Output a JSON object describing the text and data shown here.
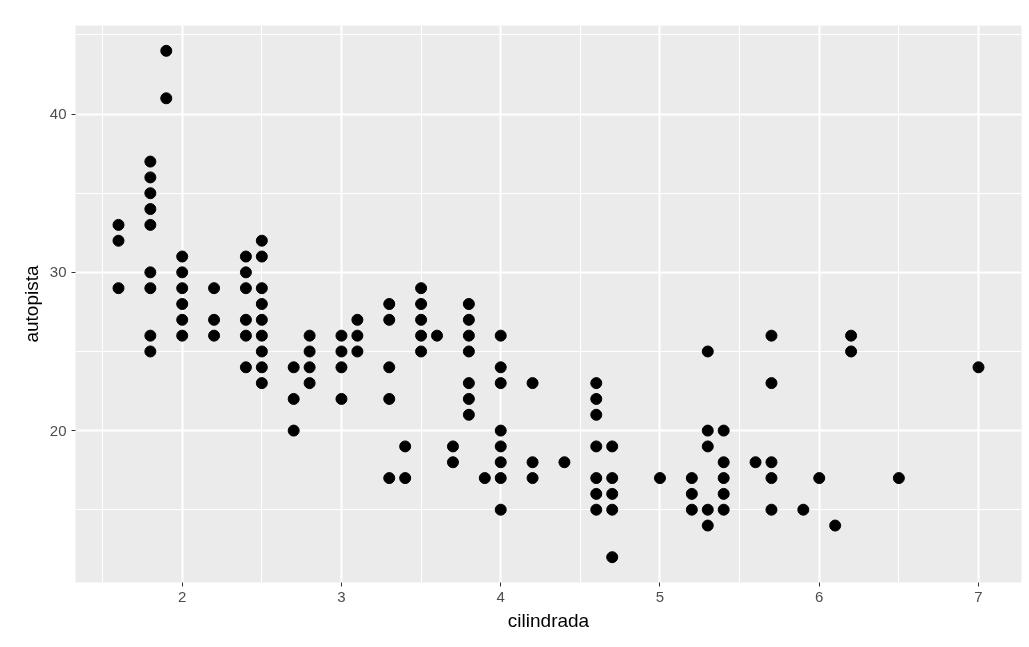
{
  "chart_data": {
    "type": "scatter",
    "xlabel": "cilindrada",
    "ylabel": "autopista",
    "xlim": [
      1.33,
      7.27
    ],
    "ylim": [
      10.4,
      45.6
    ],
    "xticks": [
      2,
      3,
      4,
      5,
      6,
      7
    ],
    "yticks": [
      20,
      30,
      40
    ],
    "grid": true,
    "marker": "circle",
    "series": [
      {
        "color": "#000000",
        "x": [
          1.6,
          1.6,
          1.6,
          1.8,
          1.8,
          1.8,
          1.8,
          1.8,
          1.8,
          1.8,
          1.8,
          1.8,
          1.9,
          1.9,
          2.0,
          2.0,
          2.0,
          2.0,
          2.0,
          2.0,
          2.2,
          2.2,
          2.2,
          2.4,
          2.4,
          2.4,
          2.4,
          2.4,
          2.4,
          2.5,
          2.5,
          2.5,
          2.5,
          2.5,
          2.5,
          2.5,
          2.5,
          2.5,
          2.7,
          2.7,
          2.7,
          2.8,
          2.8,
          2.8,
          2.8,
          3.0,
          3.0,
          3.0,
          3.0,
          3.1,
          3.1,
          3.1,
          3.3,
          3.3,
          3.3,
          3.3,
          3.3,
          3.4,
          3.4,
          3.5,
          3.5,
          3.5,
          3.5,
          3.5,
          3.6,
          3.7,
          3.7,
          3.8,
          3.8,
          3.8,
          3.8,
          3.8,
          3.8,
          3.8,
          3.9,
          4.0,
          4.0,
          4.0,
          4.0,
          4.0,
          4.0,
          4.0,
          4.0,
          4.2,
          4.2,
          4.2,
          4.4,
          4.6,
          4.6,
          4.6,
          4.6,
          4.6,
          4.6,
          4.6,
          4.7,
          4.7,
          4.7,
          4.7,
          4.7,
          5.0,
          5.2,
          5.2,
          5.2,
          5.3,
          5.3,
          5.3,
          5.3,
          5.3,
          5.4,
          5.4,
          5.4,
          5.4,
          5.4,
          5.6,
          5.7,
          5.7,
          5.7,
          5.7,
          5.7,
          5.9,
          6.0,
          6.1,
          6.2,
          6.2,
          6.5,
          7.0
        ],
        "values": [
          33,
          32,
          29,
          37,
          36,
          35,
          34,
          33,
          30,
          29,
          26,
          25,
          44,
          41,
          31,
          30,
          29,
          28,
          27,
          26,
          29,
          27,
          26,
          31,
          30,
          29,
          27,
          26,
          24,
          32,
          31,
          29,
          28,
          27,
          26,
          25,
          24,
          23,
          24,
          22,
          20,
          26,
          25,
          24,
          23,
          26,
          25,
          24,
          22,
          27,
          26,
          25,
          28,
          27,
          24,
          22,
          17,
          19,
          17,
          29,
          28,
          27,
          26,
          25,
          26,
          19,
          18,
          28,
          27,
          26,
          25,
          23,
          22,
          21,
          17,
          26,
          24,
          23,
          20,
          19,
          18,
          17,
          15,
          23,
          18,
          17,
          18,
          23,
          22,
          21,
          19,
          17,
          16,
          15,
          19,
          17,
          16,
          15,
          12,
          17,
          17,
          16,
          15,
          25,
          20,
          19,
          15,
          14,
          20,
          18,
          17,
          16,
          15,
          18,
          26,
          23,
          18,
          17,
          15,
          15,
          17,
          14,
          26,
          25,
          17,
          24
        ]
      }
    ]
  }
}
